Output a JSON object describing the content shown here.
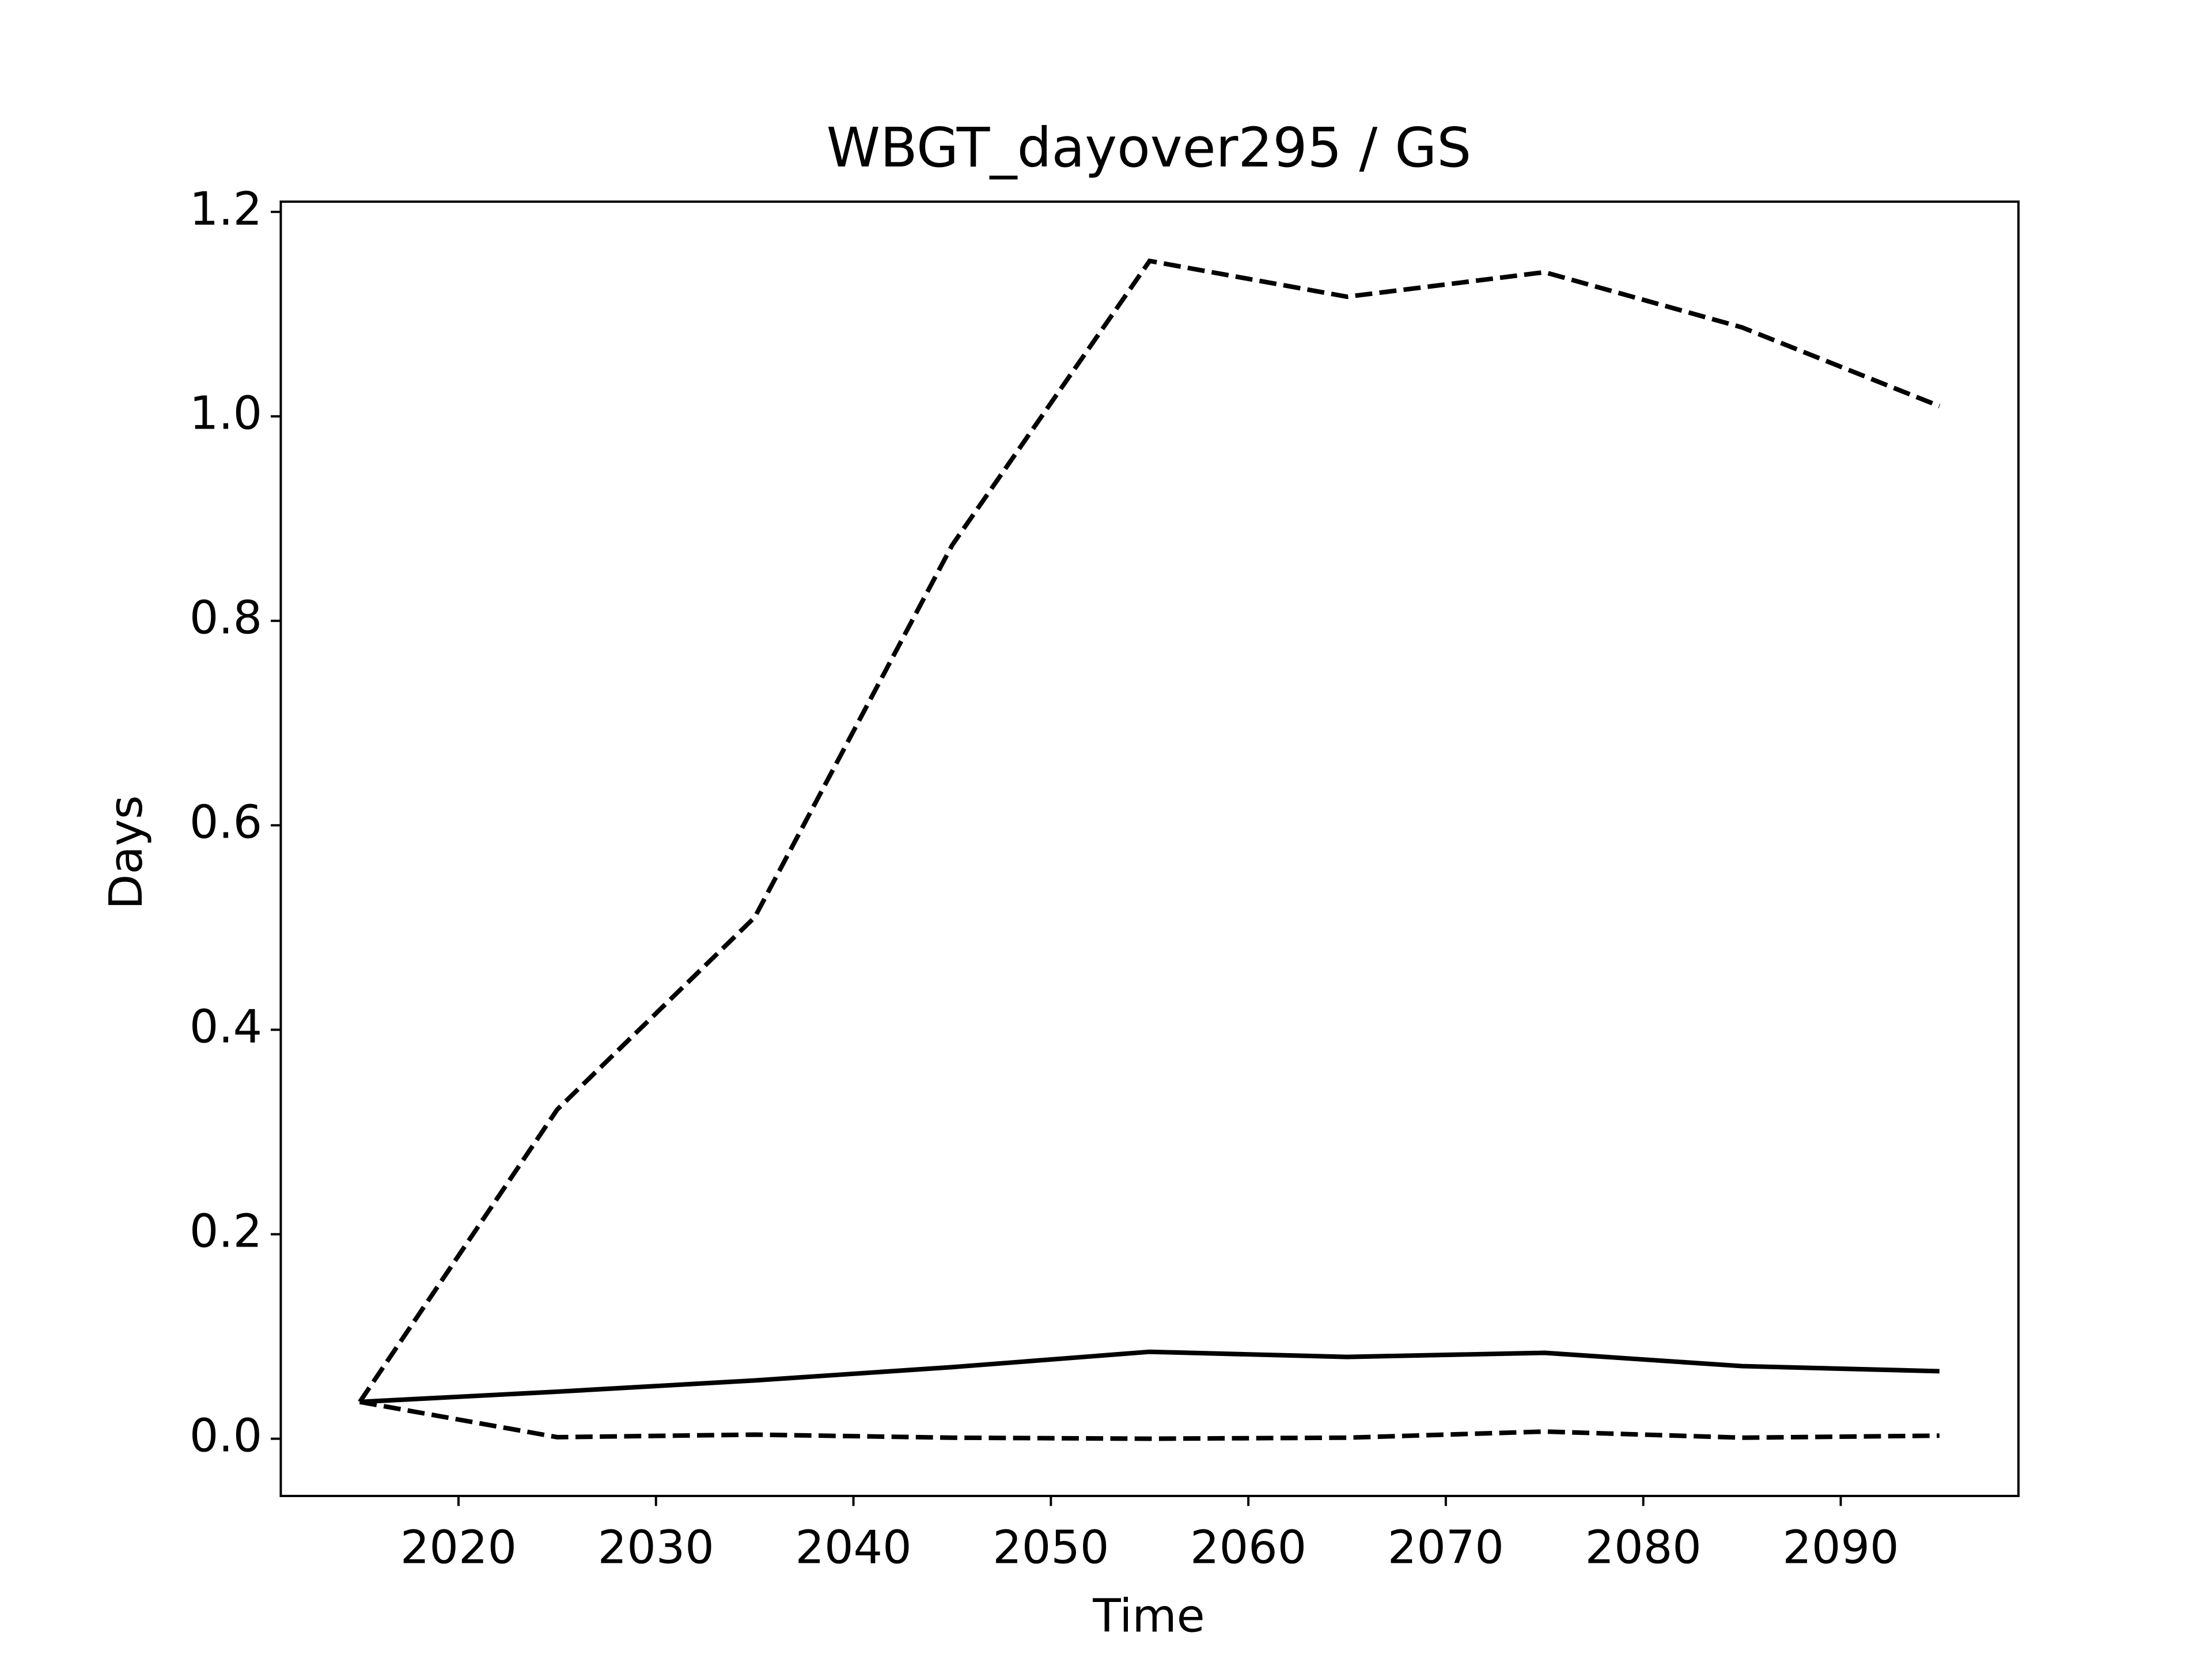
{
  "chart_data": {
    "type": "line",
    "title": "WBGT_dayover295 / GS",
    "xlabel": "Time",
    "ylabel": "Days",
    "x": [
      2015,
      2025,
      2035,
      2045,
      2055,
      2065,
      2075,
      2085,
      2095
    ],
    "series": [
      {
        "color": "#000000",
        "linestyle": "solid",
        "values": [
          0.036,
          0.046,
          0.057,
          0.07,
          0.085,
          0.08,
          0.084,
          0.071,
          0.066
        ]
      },
      {
        "color": "#000000",
        "linestyle": "dashed",
        "values": [
          0.036,
          0.322,
          0.51,
          0.874,
          1.152,
          1.117,
          1.141,
          1.087,
          1.01
        ]
      },
      {
        "color": "#000000",
        "linestyle": "dashed",
        "values": [
          0.036,
          0.0015,
          0.004,
          0.001,
          0.0,
          0.001,
          0.007,
          0.001,
          0.003
        ]
      }
    ],
    "xlim": [
      2011,
      2099
    ],
    "xticks": [
      2020,
      2030,
      2040,
      2050,
      2060,
      2070,
      2080,
      2090
    ],
    "ylim": [
      -0.056,
      1.21
    ],
    "yticks": [
      {
        "value": 0,
        "label": "0.0"
      },
      0.2,
      0.4,
      0.6,
      0.8,
      {
        "value": 1,
        "label": "1.0"
      },
      1.2
    ],
    "grid": false
  }
}
